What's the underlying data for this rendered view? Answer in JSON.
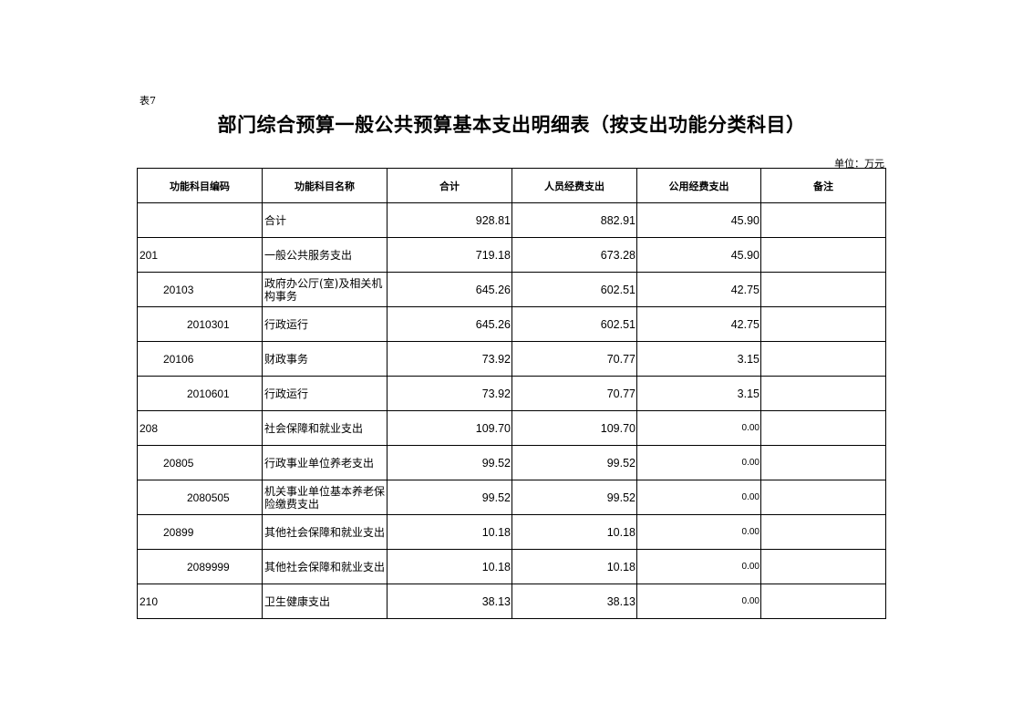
{
  "table_no": "表7",
  "title": "部门综合预算一般公共预算基本支出明细表（按支出功能分类科目）",
  "unit": "单位：万元",
  "headers": [
    "功能科目编码",
    "功能科目名称",
    "合计",
    "人员经费支出",
    "公用经费支出",
    "备注"
  ],
  "rows": [
    {
      "code": "",
      "level": 0,
      "name": "合计",
      "total": "928.81",
      "personnel": "882.91",
      "public": "45.90",
      "note": ""
    },
    {
      "code": "201",
      "level": 0,
      "name": "一般公共服务支出",
      "total": "719.18",
      "personnel": "673.28",
      "public": "45.90",
      "note": ""
    },
    {
      "code": "20103",
      "level": 1,
      "name": "政府办公厅(室)及相关机构事务",
      "total": "645.26",
      "personnel": "602.51",
      "public": "42.75",
      "note": ""
    },
    {
      "code": "2010301",
      "level": 2,
      "name": "行政运行",
      "total": "645.26",
      "personnel": "602.51",
      "public": "42.75",
      "note": ""
    },
    {
      "code": "20106",
      "level": 1,
      "name": "财政事务",
      "total": "73.92",
      "personnel": "70.77",
      "public": "3.15",
      "note": ""
    },
    {
      "code": "2010601",
      "level": 2,
      "name": "行政运行",
      "total": "73.92",
      "personnel": "70.77",
      "public": "3.15",
      "note": ""
    },
    {
      "code": "208",
      "level": 0,
      "name": "社会保障和就业支出",
      "total": "109.70",
      "personnel": "109.70",
      "public": "0.00",
      "note": ""
    },
    {
      "code": "20805",
      "level": 1,
      "name": "行政事业单位养老支出",
      "total": "99.52",
      "personnel": "99.52",
      "public": "0.00",
      "note": ""
    },
    {
      "code": "2080505",
      "level": 2,
      "name": "机关事业单位基本养老保险缴费支出",
      "total": "99.52",
      "personnel": "99.52",
      "public": "0.00",
      "note": ""
    },
    {
      "code": "20899",
      "level": 1,
      "name": "其他社会保障和就业支出",
      "total": "10.18",
      "personnel": "10.18",
      "public": "0.00",
      "note": ""
    },
    {
      "code": "2089999",
      "level": 2,
      "name": "其他社会保障和就业支出",
      "total": "10.18",
      "personnel": "10.18",
      "public": "0.00",
      "note": ""
    },
    {
      "code": "210",
      "level": 0,
      "name": "卫生健康支出",
      "total": "38.13",
      "personnel": "38.13",
      "public": "0.00",
      "note": ""
    }
  ]
}
